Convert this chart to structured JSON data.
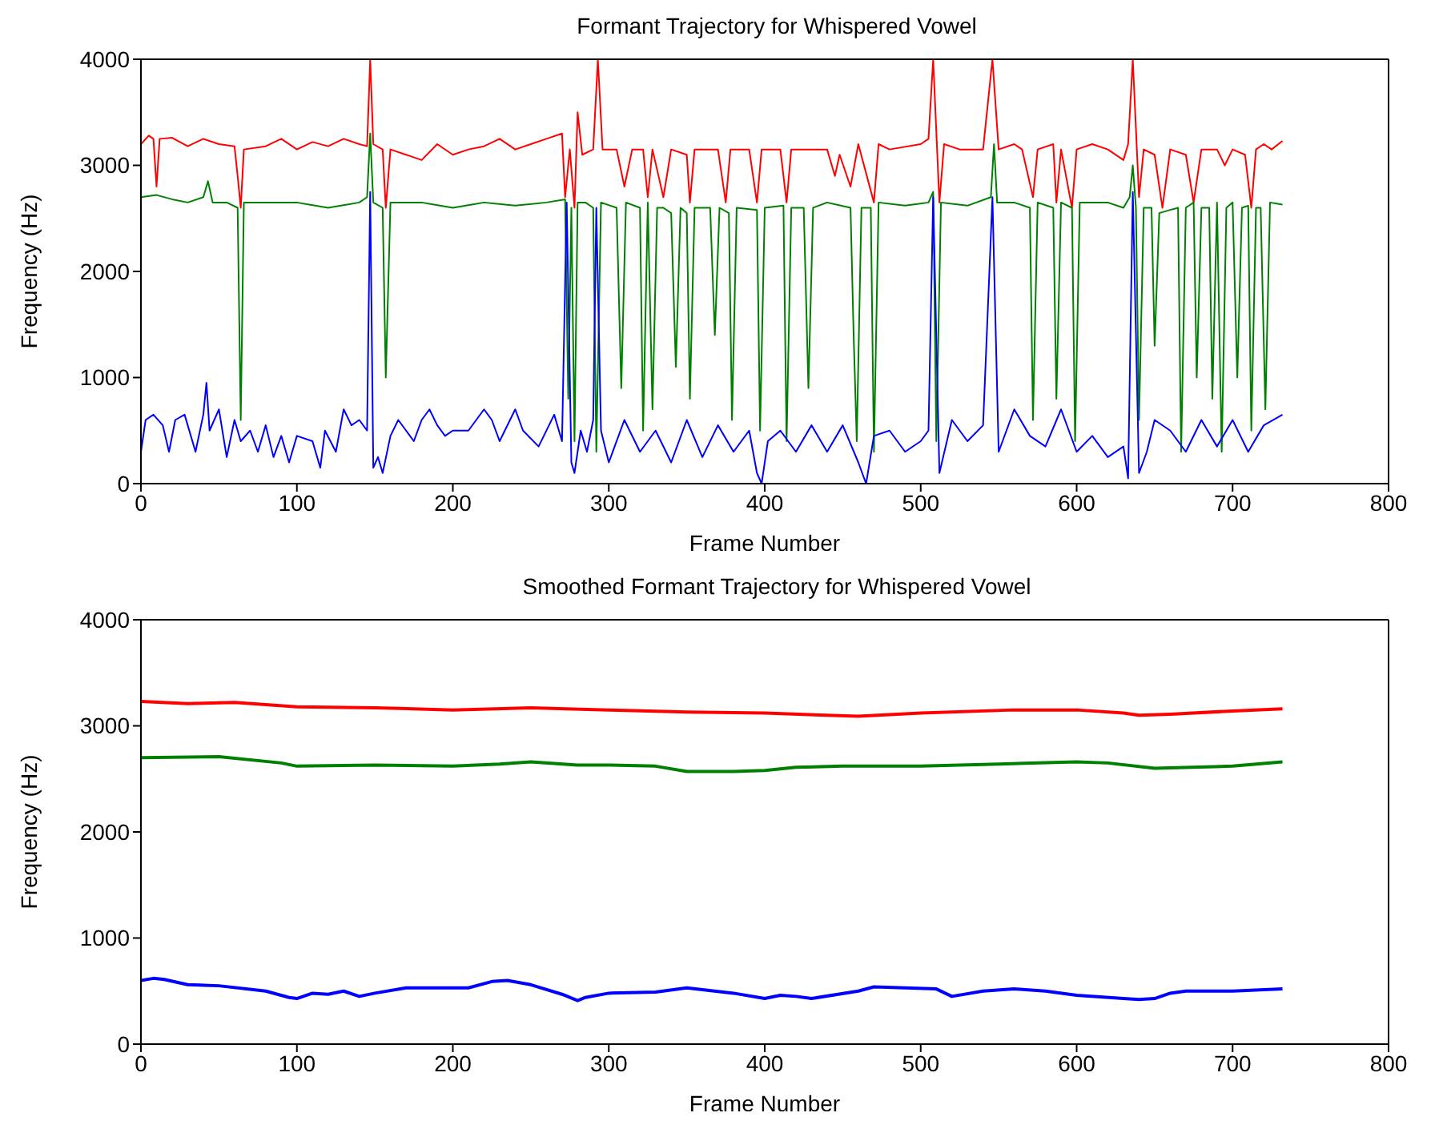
{
  "chart_data": [
    {
      "type": "line",
      "title": "Formant Trajectory for Whispered Vowel",
      "xlabel": "Frame Number",
      "ylabel": "Frequency (Hz)",
      "xlim": [
        0,
        800
      ],
      "xticks": [
        0,
        100,
        200,
        300,
        400,
        500,
        600,
        700,
        800
      ],
      "ylim": [
        0,
        4000
      ],
      "yticks": [
        0,
        1000,
        2000,
        3000,
        4000
      ],
      "marker": "none",
      "line_style": "solid",
      "series": [
        {
          "color": "#ff0000",
          "x": [
            0,
            5,
            8,
            10,
            12,
            20,
            30,
            40,
            50,
            60,
            62,
            64,
            66,
            80,
            90,
            100,
            110,
            120,
            130,
            140,
            145,
            147,
            149,
            155,
            157,
            160,
            170,
            180,
            190,
            200,
            210,
            220,
            230,
            240,
            250,
            260,
            270,
            272,
            275,
            278,
            280,
            283,
            290,
            293,
            296,
            305,
            310,
            315,
            322,
            325,
            328,
            335,
            340,
            350,
            352,
            355,
            370,
            375,
            378,
            390,
            395,
            398,
            410,
            414,
            417,
            430,
            440,
            445,
            448,
            455,
            460,
            470,
            473,
            480,
            500,
            505,
            508,
            512,
            515,
            525,
            540,
            546,
            550,
            560,
            565,
            572,
            575,
            585,
            587,
            590,
            597,
            600,
            610,
            620,
            630,
            633,
            636,
            640,
            643,
            650,
            655,
            660,
            670,
            675,
            680,
            690,
            695,
            700,
            708,
            712,
            715,
            720,
            725,
            732
          ],
          "values": [
            3200,
            3280,
            3250,
            2800,
            3250,
            3260,
            3180,
            3250,
            3200,
            3180,
            2900,
            2600,
            3150,
            3180,
            3250,
            3150,
            3220,
            3180,
            3250,
            3200,
            3180,
            4000,
            3200,
            3150,
            2600,
            3150,
            3100,
            3050,
            3200,
            3100,
            3150,
            3180,
            3250,
            3150,
            3200,
            3250,
            3300,
            2700,
            3150,
            2600,
            3500,
            3100,
            3150,
            4000,
            3150,
            3150,
            2800,
            3150,
            3150,
            2700,
            3150,
            2700,
            3150,
            3100,
            2650,
            3150,
            3150,
            2650,
            3150,
            3150,
            2650,
            3150,
            3150,
            2650,
            3150,
            3150,
            3150,
            2900,
            3100,
            2800,
            3200,
            2650,
            3200,
            3150,
            3200,
            3250,
            4000,
            2650,
            3200,
            3150,
            3150,
            4000,
            3150,
            3200,
            3150,
            2700,
            3150,
            3200,
            2650,
            3150,
            2600,
            3150,
            3200,
            3150,
            3050,
            3200,
            4000,
            2700,
            3150,
            3100,
            2600,
            3150,
            3100,
            2650,
            3150,
            3150,
            3000,
            3150,
            3100,
            2600,
            3150,
            3200,
            3150,
            3230
          ]
        },
        {
          "color": "#008000",
          "x": [
            0,
            10,
            20,
            30,
            40,
            43,
            46,
            55,
            62,
            64,
            66,
            80,
            100,
            120,
            140,
            145,
            147,
            149,
            155,
            157,
            160,
            180,
            200,
            220,
            240,
            260,
            272,
            274,
            276,
            278,
            280,
            285,
            290,
            292,
            295,
            305,
            308,
            311,
            320,
            322,
            325,
            328,
            331,
            335,
            340,
            343,
            346,
            350,
            352,
            355,
            365,
            368,
            371,
            377,
            379,
            382,
            395,
            397,
            400,
            412,
            414,
            417,
            425,
            428,
            431,
            440,
            455,
            457,
            459,
            462,
            468,
            470,
            473,
            490,
            505,
            508,
            510,
            513,
            530,
            545,
            547,
            549,
            560,
            570,
            572,
            575,
            585,
            587,
            590,
            597,
            599,
            602,
            620,
            630,
            634,
            636,
            638,
            640,
            643,
            648,
            650,
            653,
            660,
            665,
            667,
            670,
            675,
            677,
            680,
            685,
            687,
            690,
            693,
            696,
            700,
            703,
            706,
            710,
            712,
            715,
            718,
            721,
            724,
            732
          ],
          "values": [
            2700,
            2720,
            2680,
            2650,
            2700,
            2850,
            2650,
            2650,
            2600,
            600,
            2650,
            2650,
            2650,
            2600,
            2650,
            2700,
            3300,
            2650,
            2600,
            1000,
            2650,
            2650,
            2600,
            2650,
            2620,
            2650,
            2680,
            800,
            2600,
            400,
            2650,
            2650,
            2600,
            300,
            2650,
            2600,
            900,
            2650,
            2600,
            500,
            2650,
            700,
            2600,
            2600,
            2550,
            1100,
            2600,
            2550,
            800,
            2600,
            2600,
            1400,
            2600,
            2550,
            600,
            2600,
            2580,
            500,
            2600,
            2620,
            400,
            2600,
            2600,
            900,
            2600,
            2650,
            2600,
            1400,
            400,
            2600,
            2600,
            300,
            2650,
            2620,
            2650,
            2750,
            400,
            2650,
            2620,
            2700,
            3200,
            2650,
            2650,
            2600,
            600,
            2650,
            2600,
            800,
            2650,
            2600,
            400,
            2650,
            2650,
            2600,
            2700,
            3000,
            2600,
            600,
            2600,
            2600,
            1300,
            2550,
            2580,
            2600,
            300,
            2600,
            2650,
            1000,
            2600,
            2600,
            800,
            2650,
            300,
            2600,
            2650,
            1000,
            2600,
            2620,
            500,
            2600,
            2600,
            700,
            2650,
            2630
          ]
        },
        {
          "color": "#0000ff",
          "x": [
            0,
            3,
            8,
            14,
            18,
            22,
            28,
            35,
            40,
            42,
            44,
            50,
            55,
            60,
            64,
            70,
            75,
            80,
            85,
            90,
            95,
            100,
            110,
            115,
            118,
            125,
            130,
            135,
            140,
            145,
            147,
            149,
            152,
            155,
            160,
            165,
            170,
            175,
            180,
            185,
            190,
            195,
            200,
            210,
            220,
            225,
            230,
            240,
            245,
            255,
            265,
            270,
            273,
            276,
            278,
            282,
            286,
            290,
            292,
            295,
            300,
            310,
            320,
            330,
            340,
            350,
            360,
            370,
            380,
            390,
            395,
            398,
            402,
            410,
            420,
            430,
            440,
            450,
            460,
            465,
            470,
            480,
            490,
            500,
            505,
            508,
            512,
            520,
            530,
            540,
            546,
            550,
            560,
            570,
            580,
            590,
            600,
            610,
            620,
            630,
            633,
            636,
            640,
            645,
            650,
            660,
            670,
            680,
            690,
            700,
            710,
            720,
            732
          ],
          "values": [
            300,
            600,
            650,
            550,
            300,
            600,
            650,
            300,
            650,
            950,
            500,
            700,
            250,
            600,
            400,
            500,
            300,
            550,
            250,
            450,
            200,
            450,
            400,
            150,
            500,
            300,
            700,
            550,
            600,
            500,
            2750,
            150,
            250,
            100,
            450,
            600,
            500,
            400,
            600,
            700,
            550,
            450,
            500,
            500,
            700,
            600,
            400,
            700,
            500,
            350,
            650,
            400,
            2650,
            200,
            100,
            500,
            300,
            600,
            2600,
            500,
            200,
            600,
            300,
            500,
            200,
            600,
            250,
            550,
            300,
            500,
            100,
            0,
            400,
            500,
            300,
            550,
            300,
            550,
            200,
            0,
            450,
            500,
            300,
            400,
            500,
            2700,
            100,
            600,
            400,
            550,
            2700,
            300,
            700,
            450,
            350,
            700,
            300,
            450,
            250,
            350,
            50,
            2750,
            100,
            300,
            600,
            500,
            300,
            600,
            350,
            600,
            300,
            550,
            650
          ]
        }
      ]
    },
    {
      "type": "line",
      "title": "Smoothed Formant Trajectory for Whispered Vowel",
      "xlabel": "Frame Number",
      "ylabel": "Frequency (Hz)",
      "xlim": [
        0,
        800
      ],
      "xticks": [
        0,
        100,
        200,
        300,
        400,
        500,
        600,
        700,
        800
      ],
      "ylim": [
        0,
        4000
      ],
      "yticks": [
        0,
        1000,
        2000,
        3000,
        4000
      ],
      "marker": "none",
      "line_style": "solid",
      "series": [
        {
          "color": "#ff0000",
          "x": [
            0,
            30,
            60,
            100,
            150,
            200,
            250,
            300,
            350,
            400,
            460,
            500,
            560,
            600,
            630,
            640,
            660,
            700,
            732
          ],
          "values": [
            3230,
            3210,
            3220,
            3180,
            3170,
            3150,
            3170,
            3150,
            3130,
            3120,
            3090,
            3120,
            3150,
            3150,
            3120,
            3100,
            3110,
            3140,
            3160
          ]
        },
        {
          "color": "#008000",
          "x": [
            0,
            50,
            90,
            100,
            150,
            200,
            230,
            250,
            280,
            300,
            330,
            350,
            380,
            400,
            420,
            450,
            500,
            550,
            600,
            620,
            650,
            700,
            732
          ],
          "values": [
            2700,
            2710,
            2650,
            2620,
            2630,
            2620,
            2640,
            2660,
            2630,
            2630,
            2620,
            2570,
            2570,
            2580,
            2610,
            2620,
            2620,
            2640,
            2660,
            2650,
            2600,
            2620,
            2660
          ]
        },
        {
          "color": "#0000ff",
          "x": [
            0,
            8,
            15,
            30,
            50,
            80,
            95,
            100,
            110,
            120,
            130,
            140,
            150,
            170,
            210,
            225,
            235,
            250,
            270,
            280,
            285,
            300,
            330,
            350,
            380,
            400,
            410,
            420,
            430,
            460,
            470,
            510,
            520,
            540,
            560,
            580,
            600,
            630,
            640,
            650,
            660,
            670,
            700,
            732
          ],
          "values": [
            600,
            620,
            610,
            560,
            550,
            500,
            440,
            430,
            480,
            470,
            500,
            450,
            480,
            530,
            530,
            590,
            600,
            560,
            470,
            410,
            440,
            480,
            490,
            530,
            480,
            430,
            460,
            450,
            430,
            500,
            540,
            520,
            450,
            500,
            520,
            500,
            460,
            430,
            420,
            430,
            480,
            500,
            500,
            520
          ]
        }
      ]
    }
  ]
}
